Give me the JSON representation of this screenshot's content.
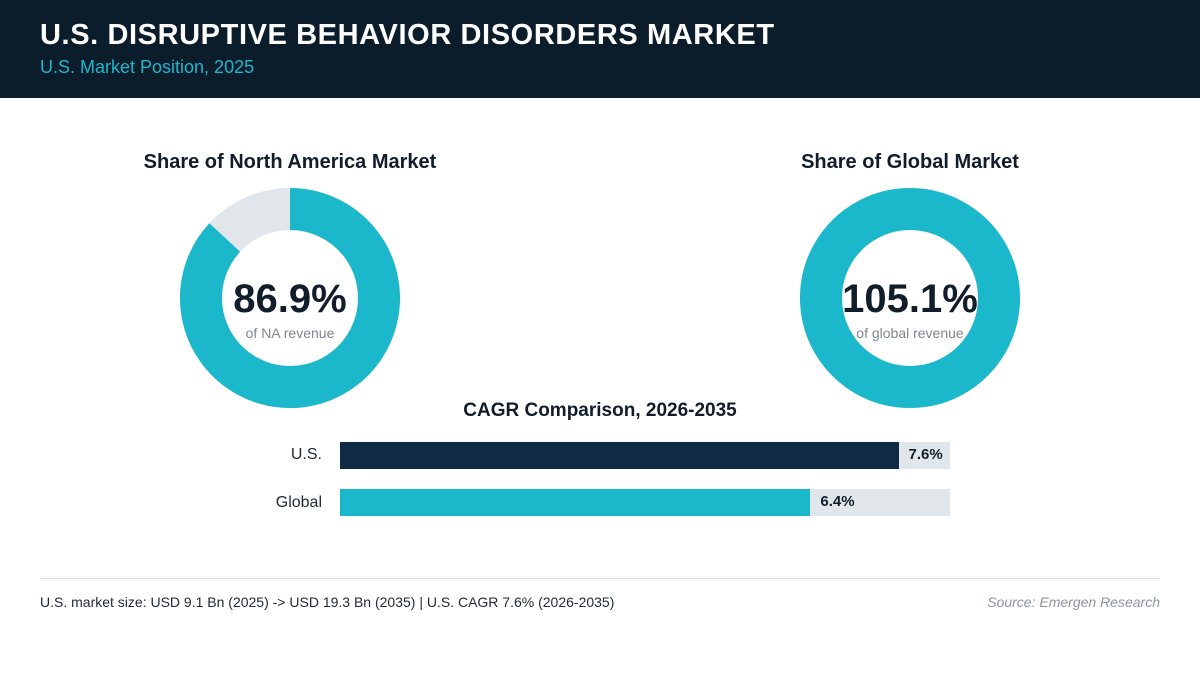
{
  "header": {
    "title": "U.S. DISRUPTIVE BEHAVIOR DISORDERS MARKET",
    "subtitle": "U.S. Market Position, 2025"
  },
  "colors": {
    "header_bg": "#0b1c2b",
    "accent_teal": "#1bb7cb",
    "accent_navy": "#0f2a42",
    "track_gray": "#e1e6eb"
  },
  "chart_data": [
    {
      "type": "pie",
      "variant": "donut",
      "title": "Share of North America Market",
      "value": 86.9,
      "value_label": "86.9%",
      "caption": "of NA revenue",
      "color": "#1bb7cb",
      "remainder_color": "#e1e6eb"
    },
    {
      "type": "pie",
      "variant": "donut",
      "title": "Share of Global Market",
      "value": 105.1,
      "value_label": "105.1%",
      "caption": "of global revenue",
      "color": "#1bb7cb",
      "remainder_color": "#e1e6eb"
    },
    {
      "type": "bar",
      "orientation": "horizontal",
      "title": "CAGR Comparison, 2026-2035",
      "categories": [
        "U.S.",
        "Global"
      ],
      "values": [
        7.6,
        6.4
      ],
      "value_labels": [
        "7.6%",
        "6.4%"
      ],
      "colors": [
        "#0f2a42",
        "#1bb7cb"
      ],
      "xlim": [
        0,
        8.3
      ]
    }
  ],
  "footer": {
    "note": "U.S. market size: USD 9.1 Bn (2025) -> USD 19.3 Bn (2035)  |  U.S. CAGR 7.6% (2026-2035)",
    "source": "Source: Emergen Research"
  }
}
